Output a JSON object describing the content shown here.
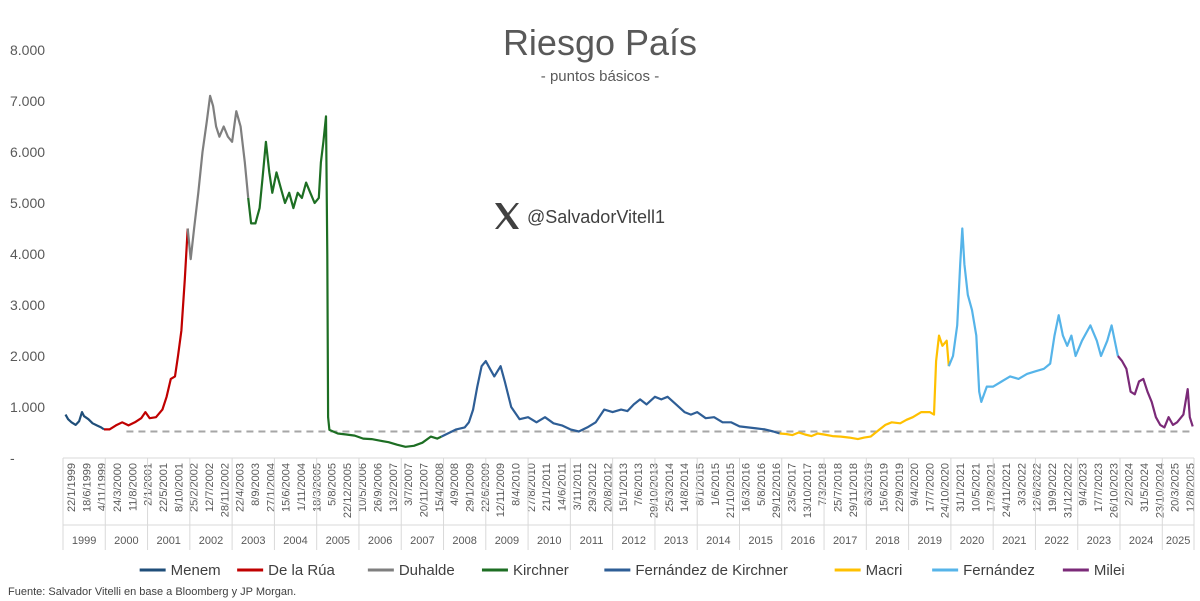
{
  "chart_data": {
    "type": "line",
    "title": "Riesgo País",
    "subtitle": "- puntos básicos -",
    "ylim": [
      0,
      8000
    ],
    "y_ticks": [
      {
        "value": 0,
        "label": "-"
      },
      {
        "value": 1000,
        "label": "1.000"
      },
      {
        "value": 2000,
        "label": "2.000"
      },
      {
        "value": 3000,
        "label": "3.000"
      },
      {
        "value": 4000,
        "label": "4.000"
      },
      {
        "value": 5000,
        "label": "5.000"
      },
      {
        "value": 6000,
        "label": "6.000"
      },
      {
        "value": 7000,
        "label": "7.000"
      },
      {
        "value": 8000,
        "label": "8.000"
      }
    ],
    "grid": false,
    "legend_position": "bottom",
    "reference_line": {
      "value": 520,
      "style": "dashed",
      "color": "#a6a6a6"
    },
    "x_tick_labels": [
      "22/1/1999",
      "18/6/1999",
      "4/11/1999",
      "24/3/2000",
      "11/8/2000",
      "2/1/2001",
      "22/5/2001",
      "8/10/2001",
      "25/2/2002",
      "12/7/2002",
      "28/11/2002",
      "22/4/2003",
      "8/9/2003",
      "27/1/2004",
      "15/6/2004",
      "1/11/2004",
      "18/3/2005",
      "5/8/2005",
      "22/12/2005",
      "10/5/2006",
      "26/9/2006",
      "13/2/2007",
      "3/7/2007",
      "20/11/2007",
      "15/4/2008",
      "4/9/2008",
      "29/1/2009",
      "22/6/2009",
      "12/11/2009",
      "8/4/2010",
      "27/8/2010",
      "21/1/2011",
      "14/6/2011",
      "3/11/2011",
      "29/3/2012",
      "20/8/2012",
      "15/1/2013",
      "7/6/2013",
      "29/10/2013",
      "25/3/2014",
      "14/8/2014",
      "8/1/2015",
      "1/6/2015",
      "21/10/2015",
      "16/3/2016",
      "5/8/2016",
      "29/12/2016",
      "23/5/2017",
      "13/10/2017",
      "7/3/2018",
      "25/7/2018",
      "29/11/2018",
      "8/3/2019",
      "15/6/2019",
      "22/9/2019",
      "9/4/2020",
      "17/7/2020",
      "24/10/2020",
      "31/1/2021",
      "10/5/2021",
      "17/8/2021",
      "24/11/2021",
      "3/3/2022",
      "12/6/2022",
      "19/9/2022",
      "31/12/2022",
      "9/4/2023",
      "17/7/2023",
      "26/10/2023",
      "2/2/2024",
      "31/5/2024",
      "23/10/2024",
      "20/3/2025",
      "12/8/2025"
    ],
    "years": [
      "1999",
      "2000",
      "2001",
      "2002",
      "2003",
      "2004",
      "2005",
      "2006",
      "2007",
      "2008",
      "2009",
      "2010",
      "2011",
      "2012",
      "2013",
      "2014",
      "2015",
      "2016",
      "2017",
      "2018",
      "2019",
      "2020",
      "2021",
      "2022",
      "2023",
      "2024",
      "2025"
    ],
    "year_starts": [
      1999.0,
      2000.0,
      2001.0,
      2002.0,
      2003.0,
      2004.0,
      2005.0,
      2006.0,
      2007.0,
      2008.0,
      2009.0,
      2010.0,
      2011.0,
      2012.0,
      2013.0,
      2014.0,
      2015.0,
      2016.0,
      2017.0,
      2018.0,
      2019.0,
      2020.0,
      2021.0,
      2022.0,
      2023.0,
      2024.0,
      2025.0,
      2025.75
    ],
    "series": [
      {
        "name": "Menem",
        "color": "#1f4e79",
        "points": [
          [
            1999.06,
            850
          ],
          [
            1999.12,
            760
          ],
          [
            1999.2,
            700
          ],
          [
            1999.3,
            650
          ],
          [
            1999.38,
            720
          ],
          [
            1999.45,
            900
          ],
          [
            1999.5,
            820
          ],
          [
            1999.6,
            760
          ],
          [
            1999.7,
            680
          ],
          [
            1999.8,
            640
          ],
          [
            1999.9,
            600
          ],
          [
            1999.97,
            560
          ]
        ]
      },
      {
        "name": "De la Rúa",
        "color": "#c00000",
        "points": [
          [
            1999.97,
            560
          ],
          [
            2000.1,
            560
          ],
          [
            2000.25,
            640
          ],
          [
            2000.4,
            700
          ],
          [
            2000.55,
            640
          ],
          [
            2000.7,
            700
          ],
          [
            2000.85,
            780
          ],
          [
            2000.95,
            900
          ],
          [
            2001.05,
            780
          ],
          [
            2001.2,
            800
          ],
          [
            2001.35,
            950
          ],
          [
            2001.45,
            1200
          ],
          [
            2001.55,
            1550
          ],
          [
            2001.65,
            1600
          ],
          [
            2001.72,
            2000
          ],
          [
            2001.8,
            2500
          ],
          [
            2001.88,
            3500
          ],
          [
            2001.95,
            4500
          ]
        ]
      },
      {
        "name": "Duhalde",
        "color": "#7f7f7f",
        "points": [
          [
            2001.95,
            4500
          ],
          [
            2002.02,
            3900
          ],
          [
            2002.1,
            4500
          ],
          [
            2002.2,
            5200
          ],
          [
            2002.3,
            6000
          ],
          [
            2002.4,
            6600
          ],
          [
            2002.48,
            7100
          ],
          [
            2002.55,
            6900
          ],
          [
            2002.62,
            6500
          ],
          [
            2002.7,
            6300
          ],
          [
            2002.8,
            6500
          ],
          [
            2002.9,
            6300
          ],
          [
            2003.0,
            6200
          ],
          [
            2003.1,
            6800
          ],
          [
            2003.2,
            6500
          ],
          [
            2003.3,
            5800
          ],
          [
            2003.38,
            5100
          ]
        ]
      },
      {
        "name": "Kirchner",
        "color": "#1d6e23",
        "points": [
          [
            2003.38,
            5100
          ],
          [
            2003.45,
            4600
          ],
          [
            2003.55,
            4600
          ],
          [
            2003.65,
            4900
          ],
          [
            2003.72,
            5500
          ],
          [
            2003.8,
            6200
          ],
          [
            2003.88,
            5600
          ],
          [
            2003.95,
            5200
          ],
          [
            2004.05,
            5600
          ],
          [
            2004.15,
            5300
          ],
          [
            2004.25,
            5000
          ],
          [
            2004.35,
            5200
          ],
          [
            2004.45,
            4900
          ],
          [
            2004.55,
            5200
          ],
          [
            2004.65,
            5100
          ],
          [
            2004.75,
            5400
          ],
          [
            2004.85,
            5200
          ],
          [
            2004.95,
            5000
          ],
          [
            2005.05,
            5100
          ],
          [
            2005.1,
            5800
          ],
          [
            2005.16,
            6200
          ],
          [
            2005.22,
            6700
          ],
          [
            2005.25,
            4000
          ],
          [
            2005.27,
            800
          ],
          [
            2005.3,
            550
          ],
          [
            2005.5,
            480
          ],
          [
            2005.7,
            460
          ],
          [
            2005.9,
            440
          ],
          [
            2006.1,
            380
          ],
          [
            2006.3,
            370
          ],
          [
            2006.5,
            340
          ],
          [
            2006.7,
            310
          ],
          [
            2006.9,
            260
          ],
          [
            2007.1,
            220
          ],
          [
            2007.3,
            240
          ],
          [
            2007.5,
            300
          ],
          [
            2007.7,
            420
          ],
          [
            2007.85,
            380
          ],
          [
            2007.95,
            420
          ]
        ]
      },
      {
        "name": "Fernández de Kirchner",
        "color": "#2e5e96",
        "points": [
          [
            2007.95,
            420
          ],
          [
            2008.1,
            480
          ],
          [
            2008.3,
            560
          ],
          [
            2008.5,
            600
          ],
          [
            2008.6,
            700
          ],
          [
            2008.7,
            950
          ],
          [
            2008.8,
            1400
          ],
          [
            2008.9,
            1800
          ],
          [
            2009.0,
            1900
          ],
          [
            2009.1,
            1750
          ],
          [
            2009.2,
            1600
          ],
          [
            2009.35,
            1800
          ],
          [
            2009.45,
            1500
          ],
          [
            2009.6,
            1000
          ],
          [
            2009.8,
            760
          ],
          [
            2010.0,
            800
          ],
          [
            2010.2,
            700
          ],
          [
            2010.4,
            800
          ],
          [
            2010.6,
            680
          ],
          [
            2010.8,
            640
          ],
          [
            2011.0,
            560
          ],
          [
            2011.2,
            520
          ],
          [
            2011.4,
            600
          ],
          [
            2011.6,
            700
          ],
          [
            2011.8,
            950
          ],
          [
            2012.0,
            900
          ],
          [
            2012.2,
            950
          ],
          [
            2012.35,
            920
          ],
          [
            2012.5,
            1050
          ],
          [
            2012.65,
            1150
          ],
          [
            2012.8,
            1050
          ],
          [
            2013.0,
            1200
          ],
          [
            2013.15,
            1150
          ],
          [
            2013.3,
            1200
          ],
          [
            2013.5,
            1050
          ],
          [
            2013.7,
            900
          ],
          [
            2013.85,
            850
          ],
          [
            2014.0,
            900
          ],
          [
            2014.2,
            780
          ],
          [
            2014.4,
            800
          ],
          [
            2014.6,
            700
          ],
          [
            2014.8,
            700
          ],
          [
            2015.0,
            620
          ],
          [
            2015.2,
            600
          ],
          [
            2015.4,
            580
          ],
          [
            2015.6,
            560
          ],
          [
            2015.8,
            520
          ],
          [
            2015.95,
            480
          ]
        ]
      },
      {
        "name": "Macri",
        "color": "#ffc000",
        "points": [
          [
            2015.95,
            480
          ],
          [
            2016.1,
            470
          ],
          [
            2016.25,
            450
          ],
          [
            2016.4,
            500
          ],
          [
            2016.55,
            460
          ],
          [
            2016.7,
            430
          ],
          [
            2016.85,
            480
          ],
          [
            2017.0,
            460
          ],
          [
            2017.2,
            430
          ],
          [
            2017.4,
            420
          ],
          [
            2017.6,
            400
          ],
          [
            2017.8,
            370
          ],
          [
            2017.95,
            400
          ],
          [
            2018.1,
            420
          ],
          [
            2018.3,
            550
          ],
          [
            2018.45,
            650
          ],
          [
            2018.6,
            700
          ],
          [
            2018.8,
            680
          ],
          [
            2018.95,
            750
          ],
          [
            2019.1,
            800
          ],
          [
            2019.3,
            900
          ],
          [
            2019.5,
            900
          ],
          [
            2019.6,
            850
          ],
          [
            2019.65,
            1900
          ],
          [
            2019.72,
            2400
          ],
          [
            2019.8,
            2200
          ],
          [
            2019.9,
            2300
          ],
          [
            2019.95,
            1800
          ]
        ]
      },
      {
        "name": "Fernández",
        "color": "#56b4e9",
        "points": [
          [
            2019.95,
            1800
          ],
          [
            2020.05,
            2000
          ],
          [
            2020.15,
            2600
          ],
          [
            2020.22,
            3800
          ],
          [
            2020.27,
            4500
          ],
          [
            2020.32,
            3800
          ],
          [
            2020.4,
            3200
          ],
          [
            2020.5,
            2900
          ],
          [
            2020.6,
            2400
          ],
          [
            2020.67,
            1300
          ],
          [
            2020.72,
            1100
          ],
          [
            2020.85,
            1400
          ],
          [
            2021.0,
            1400
          ],
          [
            2021.2,
            1500
          ],
          [
            2021.4,
            1600
          ],
          [
            2021.6,
            1550
          ],
          [
            2021.8,
            1650
          ],
          [
            2022.0,
            1700
          ],
          [
            2022.2,
            1750
          ],
          [
            2022.35,
            1850
          ],
          [
            2022.45,
            2400
          ],
          [
            2022.55,
            2800
          ],
          [
            2022.65,
            2400
          ],
          [
            2022.75,
            2200
          ],
          [
            2022.85,
            2400
          ],
          [
            2022.95,
            2000
          ],
          [
            2023.1,
            2300
          ],
          [
            2023.3,
            2600
          ],
          [
            2023.45,
            2300
          ],
          [
            2023.55,
            2000
          ],
          [
            2023.7,
            2300
          ],
          [
            2023.8,
            2600
          ],
          [
            2023.9,
            2200
          ],
          [
            2023.95,
            2000
          ]
        ]
      },
      {
        "name": "Milei",
        "color": "#7b2a78",
        "points": [
          [
            2023.95,
            2000
          ],
          [
            2024.05,
            1900
          ],
          [
            2024.15,
            1750
          ],
          [
            2024.25,
            1300
          ],
          [
            2024.35,
            1250
          ],
          [
            2024.45,
            1500
          ],
          [
            2024.55,
            1550
          ],
          [
            2024.65,
            1300
          ],
          [
            2024.75,
            1100
          ],
          [
            2024.85,
            800
          ],
          [
            2024.95,
            650
          ],
          [
            2025.05,
            600
          ],
          [
            2025.15,
            800
          ],
          [
            2025.25,
            650
          ],
          [
            2025.35,
            700
          ],
          [
            2025.5,
            850
          ],
          [
            2025.6,
            1350
          ],
          [
            2025.65,
            800
          ],
          [
            2025.72,
            620
          ]
        ]
      }
    ]
  },
  "watermark": {
    "handle": "@SalvadorVitell1",
    "icon": "x-logo-icon"
  },
  "source": "Fuente: Salvador Vitelli en base a Bloomberg y JP Morgan."
}
